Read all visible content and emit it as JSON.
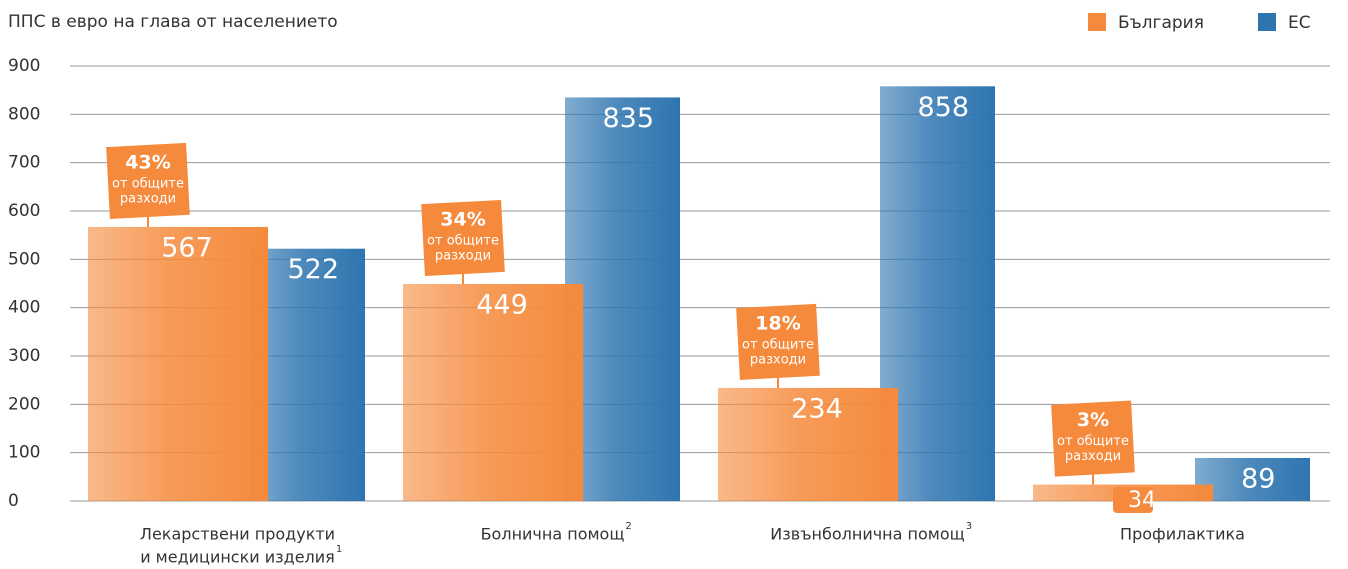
{
  "chart_data": {
    "type": "bar",
    "title": "ППС в евро на глава от населението",
    "categories": [
      [
        "Лекарствени продукти",
        "и медицински изделия"
      ],
      [
        "Болнична помощ"
      ],
      [
        "Извънболнична помощ"
      ],
      [
        "Профилактика"
      ]
    ],
    "category_notes": [
      "1",
      "2",
      "3",
      null
    ],
    "series": [
      {
        "name": "България",
        "color": "#f58a3c",
        "values": [
          567,
          449,
          234,
          34
        ]
      },
      {
        "name": "ЕС",
        "color": "#2e75b0",
        "values": [
          522,
          835,
          858,
          89
        ]
      }
    ],
    "share_labels": [
      "43%",
      "34%",
      "18%",
      "3%"
    ],
    "share_note": [
      "от общите",
      "разходи"
    ],
    "ylim": [
      0,
      900
    ],
    "yticks": [
      0,
      100,
      200,
      300,
      400,
      500,
      600,
      700,
      800,
      900
    ],
    "grid": true,
    "legend": "top-right"
  }
}
